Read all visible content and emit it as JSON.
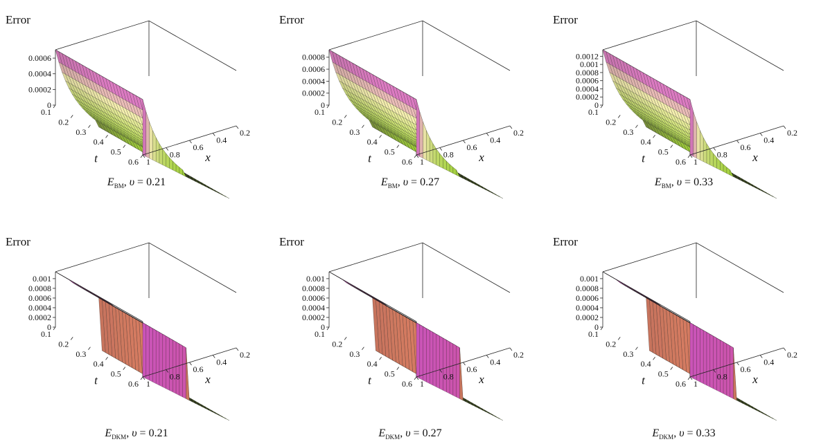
{
  "chart_data": [
    {
      "type": "surface",
      "method": "BM",
      "caption": {
        "symbol": "E",
        "subscript": "BM",
        "param": "υ",
        "value": "0.21"
      },
      "zlabel": "Error",
      "xlabel": "x",
      "ylabel": "t",
      "x_ticks": [
        "0.2",
        "0.4",
        "0.6",
        "0.8",
        "1"
      ],
      "t_ticks": [
        "0.1",
        "0.2",
        "0.3",
        "0.4",
        "0.5",
        "0.6"
      ],
      "z_ticks": [
        "0",
        "0.0002",
        "0.0004",
        "0.0006"
      ],
      "x_range": [
        0.1,
        1.0
      ],
      "t_range": [
        0.1,
        0.6
      ],
      "z_range": [
        0,
        0.00065
      ],
      "peak_error": 0.00065,
      "profile": "decay"
    },
    {
      "type": "surface",
      "method": "BM",
      "caption": {
        "symbol": "E",
        "subscript": "BM",
        "param": "υ",
        "value": "0.27"
      },
      "zlabel": "Error",
      "xlabel": "x",
      "ylabel": "t",
      "x_ticks": [
        "0.2",
        "0.4",
        "0.6",
        "0.8",
        "1"
      ],
      "t_ticks": [
        "0.1",
        "0.2",
        "0.3",
        "0.4",
        "0.5",
        "0.6"
      ],
      "z_ticks": [
        "0",
        "0.0002",
        "0.0004",
        "0.0006",
        "0.0008"
      ],
      "x_range": [
        0.1,
        1.0
      ],
      "t_range": [
        0.1,
        0.6
      ],
      "z_range": [
        0,
        0.00085
      ],
      "peak_error": 0.00085,
      "profile": "decay"
    },
    {
      "type": "surface",
      "method": "BM",
      "caption": {
        "symbol": "E",
        "subscript": "BM",
        "param": "υ",
        "value": "0.33"
      },
      "zlabel": "Error",
      "xlabel": "x",
      "ylabel": "t",
      "x_ticks": [
        "0.2",
        "0.4",
        "0.6",
        "0.8",
        "1"
      ],
      "t_ticks": [
        "0.1",
        "0.2",
        "0.3",
        "0.4",
        "0.5",
        "0.6"
      ],
      "z_ticks": [
        "0",
        "0.0002",
        "0.0004",
        "0.0006",
        "0.0008",
        "0.001",
        "0.0012"
      ],
      "x_range": [
        0.1,
        1.0
      ],
      "t_range": [
        0.1,
        0.6
      ],
      "z_range": [
        0,
        0.00125
      ],
      "peak_error": 0.00125,
      "profile": "decay"
    },
    {
      "type": "surface",
      "method": "DKM",
      "caption": {
        "symbol": "E",
        "subscript": "DKM",
        "param": "υ",
        "value": "0.21"
      },
      "zlabel": "Error",
      "xlabel": "x",
      "ylabel": "t",
      "x_ticks": [
        "0.2",
        "0.4",
        "0.6",
        "0.8",
        "1"
      ],
      "t_ticks": [
        "0.1",
        "0.2",
        "0.3",
        "0.4",
        "0.5",
        "0.6"
      ],
      "z_ticks": [
        "0",
        "0.0002",
        "0.0004",
        "0.0006",
        "0.0008",
        "0.001"
      ],
      "x_range": [
        0.1,
        1.0
      ],
      "t_range": [
        0.1,
        0.6
      ],
      "z_range": [
        0,
        0.00105
      ],
      "peak_error": 0.00105,
      "profile": "plateau"
    },
    {
      "type": "surface",
      "method": "DKM",
      "caption": {
        "symbol": "E",
        "subscript": "DKM",
        "param": "υ",
        "value": "0.27"
      },
      "zlabel": "Error",
      "xlabel": "x",
      "ylabel": "t",
      "x_ticks": [
        "0.2",
        "0.4",
        "0.6",
        "0.8",
        "1"
      ],
      "t_ticks": [
        "0.1",
        "0.2",
        "0.3",
        "0.4",
        "0.5",
        "0.6"
      ],
      "z_ticks": [
        "0",
        "0.0002",
        "0.0004",
        "0.0006",
        "0.0008",
        "0.001"
      ],
      "x_range": [
        0.1,
        1.0
      ],
      "t_range": [
        0.1,
        0.6
      ],
      "z_range": [
        0,
        0.00105
      ],
      "peak_error": 0.00105,
      "profile": "plateau"
    },
    {
      "type": "surface",
      "method": "DKM",
      "caption": {
        "symbol": "E",
        "subscript": "DKM",
        "param": "υ",
        "value": "0.33"
      },
      "zlabel": "Error",
      "xlabel": "x",
      "ylabel": "t",
      "x_ticks": [
        "0.2",
        "0.4",
        "0.6",
        "0.8",
        "1"
      ],
      "t_ticks": [
        "0.1",
        "0.2",
        "0.3",
        "0.4",
        "0.5",
        "0.6"
      ],
      "z_ticks": [
        "0",
        "0.0002",
        "0.0004",
        "0.0006",
        "0.0008",
        "0.001"
      ],
      "x_range": [
        0.1,
        1.0
      ],
      "t_range": [
        0.1,
        0.6
      ],
      "z_range": [
        0,
        0.00105
      ],
      "peak_error": 0.00105,
      "profile": "plateau"
    }
  ],
  "colors": {
    "high": "#d456c8",
    "mid_bm": "#f6efb0",
    "mid_dkm": "#e45a6e",
    "low": "#a8dc3a",
    "dark": "#4e4a3a",
    "axis": "#222222"
  }
}
